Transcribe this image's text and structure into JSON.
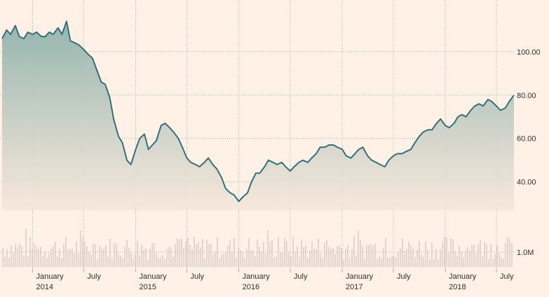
{
  "chart_data": {
    "type": "area",
    "title": "",
    "xlabel": "",
    "ylabel": "",
    "ylim": [
      27,
      118
    ],
    "grid": true,
    "colors": {
      "background": "#fff1e5",
      "line": "#2f7378",
      "area_top": "#8fb2ab",
      "area_bottom": "#f7e7db",
      "grid": "#b8aea6",
      "volume": "#c8bcb4",
      "text": "#33302e"
    },
    "price_axis": {
      "ticks": [
        40,
        60,
        80,
        100
      ],
      "labels": [
        "40.00",
        "60.00",
        "80.00",
        "100.00"
      ]
    },
    "volume_axis": {
      "ticks": [
        1000000
      ],
      "labels": [
        "1.0M"
      ],
      "max": 3000000
    },
    "x_ticks": [
      {
        "date": "2014-01-01",
        "label1": "January",
        "label2": "2014"
      },
      {
        "date": "2014-07-01",
        "label1": "July",
        "label2": ""
      },
      {
        "date": "2015-01-01",
        "label1": "January",
        "label2": "2015"
      },
      {
        "date": "2015-07-01",
        "label1": "July",
        "label2": ""
      },
      {
        "date": "2016-01-01",
        "label1": "January",
        "label2": "2016"
      },
      {
        "date": "2016-07-01",
        "label1": "July",
        "label2": ""
      },
      {
        "date": "2017-01-01",
        "label1": "January",
        "label2": "2017"
      },
      {
        "date": "2017-07-01",
        "label1": "July",
        "label2": ""
      },
      {
        "date": "2018-01-01",
        "label1": "January",
        "label2": "2018"
      },
      {
        "date": "2018-07-01",
        "label1": "July",
        "label2": ""
      }
    ],
    "series": [
      {
        "type": "price",
        "x": [
          "2013-09-15",
          "2013-10-01",
          "2013-10-15",
          "2013-11-01",
          "2013-11-15",
          "2013-12-01",
          "2013-12-15",
          "2014-01-01",
          "2014-01-15",
          "2014-02-01",
          "2014-02-15",
          "2014-03-01",
          "2014-03-15",
          "2014-04-01",
          "2014-04-15",
          "2014-05-01",
          "2014-05-15",
          "2014-06-01",
          "2014-06-15",
          "2014-07-01",
          "2014-07-15",
          "2014-08-01",
          "2014-08-15",
          "2014-09-01",
          "2014-09-15",
          "2014-10-01",
          "2014-10-15",
          "2014-11-01",
          "2014-11-15",
          "2014-12-01",
          "2014-12-15",
          "2015-01-01",
          "2015-01-15",
          "2015-02-01",
          "2015-02-15",
          "2015-03-01",
          "2015-03-15",
          "2015-04-01",
          "2015-04-15",
          "2015-05-01",
          "2015-05-15",
          "2015-06-01",
          "2015-06-15",
          "2015-07-01",
          "2015-07-15",
          "2015-08-01",
          "2015-08-15",
          "2015-09-01",
          "2015-09-15",
          "2015-10-01",
          "2015-10-15",
          "2015-11-01",
          "2015-11-15",
          "2015-12-01",
          "2015-12-15",
          "2016-01-01",
          "2016-01-15",
          "2016-02-01",
          "2016-02-15",
          "2016-03-01",
          "2016-03-15",
          "2016-04-01",
          "2016-04-15",
          "2016-05-01",
          "2016-05-15",
          "2016-06-01",
          "2016-06-15",
          "2016-07-01",
          "2016-07-15",
          "2016-08-01",
          "2016-08-15",
          "2016-09-01",
          "2016-09-15",
          "2016-10-01",
          "2016-10-15",
          "2016-11-01",
          "2016-11-15",
          "2016-12-01",
          "2016-12-15",
          "2017-01-01",
          "2017-01-15",
          "2017-02-01",
          "2017-02-15",
          "2017-03-01",
          "2017-03-15",
          "2017-04-01",
          "2017-04-15",
          "2017-05-01",
          "2017-05-15",
          "2017-06-01",
          "2017-06-15",
          "2017-07-01",
          "2017-07-15",
          "2017-08-01",
          "2017-08-15",
          "2017-09-01",
          "2017-09-15",
          "2017-10-01",
          "2017-10-15",
          "2017-11-01",
          "2017-11-15",
          "2017-12-01",
          "2017-12-15",
          "2018-01-01",
          "2018-01-15",
          "2018-02-01",
          "2018-02-15",
          "2018-03-01",
          "2018-03-15",
          "2018-04-01",
          "2018-04-15",
          "2018-05-01",
          "2018-05-15",
          "2018-06-01",
          "2018-06-15",
          "2018-07-01",
          "2018-07-15",
          "2018-08-01",
          "2018-08-15",
          "2018-09-01"
        ],
        "values": [
          106,
          110,
          108,
          112,
          107,
          106,
          109,
          108,
          109,
          107,
          107,
          109,
          108,
          111,
          108,
          114,
          105,
          104,
          103,
          101,
          99,
          97,
          92,
          86,
          85,
          79,
          69,
          61,
          58,
          50,
          48,
          55,
          60,
          62,
          55,
          57,
          59,
          66,
          67,
          65,
          63,
          60,
          56,
          51,
          49,
          48,
          47,
          49,
          51,
          48,
          46,
          42,
          37,
          35,
          34,
          31,
          33,
          35,
          40,
          44,
          44,
          47,
          50,
          49,
          48,
          49,
          47,
          45,
          47,
          49,
          50,
          49,
          51,
          53,
          56,
          56,
          57,
          57,
          56,
          55,
          52,
          51,
          53,
          55,
          56,
          52,
          50,
          49,
          48,
          47,
          50,
          52,
          53,
          53,
          54,
          55,
          58,
          61,
          63,
          64,
          64,
          67,
          69,
          66,
          65,
          67,
          70,
          71,
          70,
          73,
          75,
          76,
          75,
          78,
          77,
          75,
          73,
          74,
          77,
          80
        ]
      }
    ]
  }
}
